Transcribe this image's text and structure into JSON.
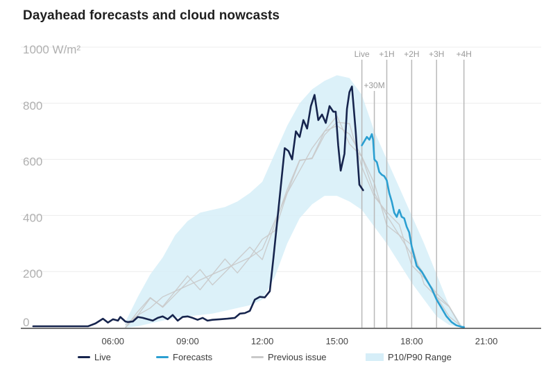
{
  "title": "Dayahead forecasts and cloud nowcasts",
  "colors": {
    "live": "#16244d",
    "forecast": "#2b9fd1",
    "previous": "#c9c9c9",
    "range": "#d6eef8",
    "grid": "#ececec",
    "marker": "#b9b9b9",
    "axis_text": "#b0b0b0",
    "tick_text": "#444444"
  },
  "legend": {
    "live": "Live",
    "forecast": "Forecasts",
    "previous": "Previous issue",
    "range": "P10/P90 Range"
  },
  "chart_data": {
    "type": "line",
    "title": "Dayahead forecasts and cloud nowcasts",
    "xlabel": "",
    "ylabel": "",
    "x_unit": "hours of day",
    "xlim": [
      2.3,
      23.2
    ],
    "ylim": [
      0,
      1000
    ],
    "y_ticks": [
      0,
      200,
      400,
      600,
      800,
      1000
    ],
    "y_tick_labels": [
      "0",
      "200",
      "400",
      "600",
      "800",
      "1000 W/m²"
    ],
    "x_ticks": [
      6,
      9,
      12,
      15,
      18,
      21
    ],
    "x_tick_labels": [
      "06:00",
      "09:00",
      "12:00",
      "15:00",
      "18:00",
      "21:00"
    ],
    "grid": true,
    "legend_position": "bottom",
    "markers": [
      {
        "label": "Live",
        "x": 16.0
      },
      {
        "label": "+30M",
        "x": 16.5
      },
      {
        "label": "+1H",
        "x": 17.0
      },
      {
        "label": "+2H",
        "x": 18.0
      },
      {
        "label": "+3H",
        "x": 19.0
      },
      {
        "label": "+4H",
        "x": 20.1
      }
    ],
    "series": [
      {
        "name": "Live",
        "x": [
          2.8,
          5.0,
          5.3,
          5.6,
          5.8,
          6.0,
          6.2,
          6.3,
          6.5,
          6.6,
          6.8,
          7.0,
          7.2,
          7.4,
          7.6,
          7.8,
          8.0,
          8.2,
          8.4,
          8.6,
          8.8,
          9.0,
          9.2,
          9.4,
          9.6,
          9.8,
          10.0,
          10.3,
          10.6,
          10.9,
          11.1,
          11.3,
          11.5,
          11.7,
          11.9,
          12.1,
          12.3,
          12.45,
          12.6,
          12.75,
          12.9,
          13.05,
          13.2,
          13.35,
          13.5,
          13.65,
          13.8,
          13.95,
          14.1,
          14.25,
          14.4,
          14.55,
          14.7,
          14.85,
          14.95,
          15.05,
          15.15,
          15.3,
          15.4,
          15.5,
          15.6,
          15.75,
          15.9,
          16.05
        ],
        "y": [
          5,
          5,
          15,
          32,
          18,
          30,
          25,
          38,
          22,
          20,
          22,
          38,
          35,
          30,
          25,
          35,
          40,
          30,
          45,
          25,
          38,
          40,
          35,
          28,
          35,
          25,
          28,
          30,
          32,
          35,
          50,
          52,
          60,
          100,
          110,
          108,
          130,
          250,
          380,
          510,
          640,
          630,
          600,
          700,
          680,
          740,
          710,
          790,
          830,
          740,
          760,
          730,
          790,
          770,
          770,
          650,
          560,
          620,
          780,
          840,
          860,
          700,
          510,
          490
        ],
        "last_index_before_forecast": 63
      },
      {
        "name": "Forecasts",
        "x": [
          16.0,
          16.1,
          16.2,
          16.3,
          16.4,
          16.45,
          16.5,
          16.6,
          16.7,
          16.8,
          16.9,
          17.0,
          17.1,
          17.2,
          17.3,
          17.4,
          17.5,
          17.6,
          17.7,
          17.8,
          17.9,
          18.0,
          18.2,
          18.4,
          18.6,
          18.8,
          19.0,
          19.2,
          19.4,
          19.6,
          19.8,
          20.0,
          20.1
        ],
        "y": [
          650,
          665,
          680,
          670,
          690,
          670,
          600,
          590,
          555,
          545,
          540,
          525,
          480,
          450,
          410,
          395,
          420,
          395,
          390,
          360,
          340,
          290,
          220,
          200,
          170,
          140,
          100,
          70,
          40,
          20,
          8,
          3,
          2
        ]
      },
      {
        "name": "Previous issue",
        "x": [
          6.5,
          7.0,
          7.5,
          8.0,
          8.5,
          9.0,
          9.5,
          10.0,
          10.5,
          11.0,
          11.5,
          12.0,
          12.5,
          13.0,
          13.5,
          14.0,
          14.5,
          15.0,
          15.5,
          16.0,
          16.5,
          17.0,
          17.5,
          18.0,
          18.5,
          19.0,
          19.5,
          20.0
        ],
        "y": [
          10,
          45,
          70,
          110,
          130,
          150,
          170,
          190,
          210,
          230,
          250,
          280,
          380,
          480,
          560,
          640,
          700,
          720,
          690,
          610,
          480,
          400,
          330,
          260,
          190,
          110,
          40,
          5
        ]
      },
      {
        "name": "P10/P90 Range",
        "x": [
          6.5,
          7.0,
          7.5,
          8.0,
          8.5,
          9.0,
          9.5,
          10.0,
          10.5,
          11.0,
          11.5,
          12.0,
          12.5,
          13.0,
          13.5,
          14.0,
          14.5,
          15.0,
          15.5,
          16.0,
          16.5,
          17.0,
          17.5,
          18.0,
          18.5,
          19.0,
          19.5,
          20.0
        ],
        "upper": [
          20,
          110,
          190,
          250,
          330,
          380,
          410,
          420,
          430,
          450,
          480,
          520,
          620,
          720,
          800,
          850,
          880,
          900,
          890,
          830,
          700,
          600,
          500,
          400,
          300,
          190,
          80,
          10
        ],
        "lower": [
          0,
          5,
          15,
          25,
          35,
          40,
          45,
          50,
          60,
          70,
          80,
          100,
          180,
          300,
          390,
          440,
          470,
          470,
          450,
          420,
          360,
          300,
          230,
          160,
          100,
          40,
          10,
          0
        ]
      }
    ]
  }
}
